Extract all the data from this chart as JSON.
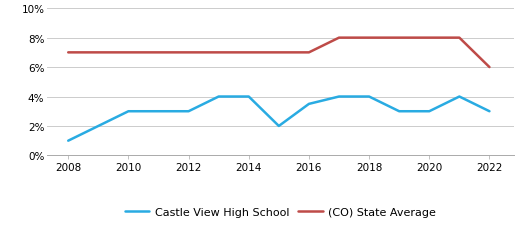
{
  "castle_view_years": [
    2008,
    2010,
    2012,
    2013,
    2014,
    2015,
    2016,
    2017,
    2018,
    2019,
    2020,
    2021,
    2022
  ],
  "castle_view_values": [
    1,
    3,
    3,
    4,
    4,
    2,
    3.5,
    4,
    4,
    3,
    3,
    4,
    3
  ],
  "co_state_years": [
    2008,
    2010,
    2012,
    2013,
    2014,
    2015,
    2016,
    2017,
    2018,
    2019,
    2020,
    2021,
    2022
  ],
  "co_state_values": [
    7,
    7,
    7,
    7,
    7,
    7,
    7,
    8,
    8,
    8,
    8,
    8,
    6
  ],
  "castle_view_color": "#29ABE2",
  "co_state_color": "#BE4B48",
  "castle_view_label": "Castle View High School",
  "co_state_label": "(CO) State Average",
  "ylim": [
    0,
    10
  ],
  "yticks": [
    0,
    2,
    4,
    6,
    8,
    10
  ],
  "xticks": [
    2008,
    2010,
    2012,
    2014,
    2016,
    2018,
    2020,
    2022
  ],
  "background_color": "#ffffff",
  "grid_color": "#cccccc",
  "line_width": 1.8,
  "figsize": [
    5.24,
    2.3
  ],
  "dpi": 100
}
